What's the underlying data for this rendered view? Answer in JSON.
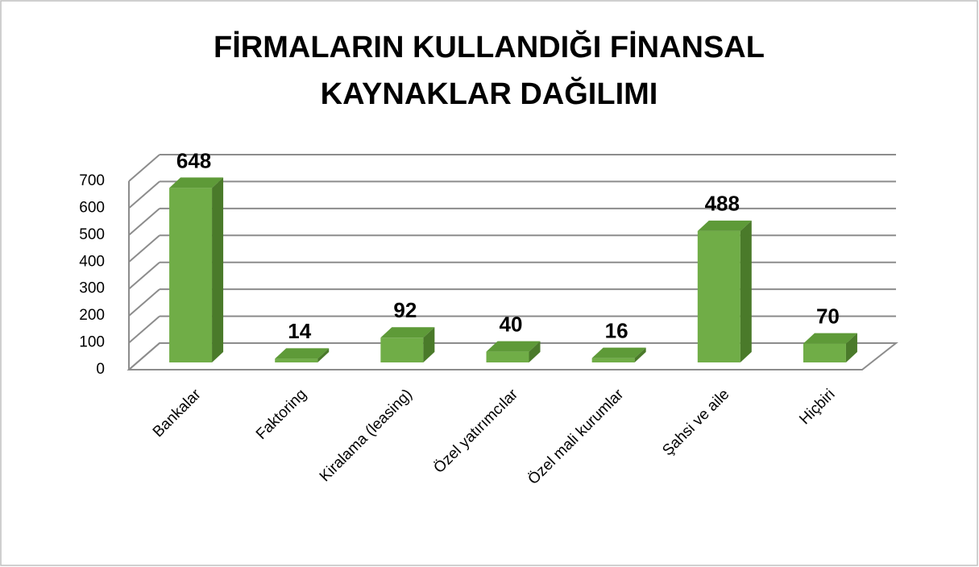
{
  "chart_data": {
    "type": "bar3d",
    "title": "FİRMALARIN KULLANDIĞI FİNANSAL KAYNAKLAR DAĞILIMI",
    "categories": [
      "Bankalar",
      "Faktoring",
      "Kiralama (leasing)",
      "Özel yatırımcılar",
      "Özel mali kurumlar",
      "Şahsi ve aile",
      "Hiçbiri"
    ],
    "values": [
      648,
      14,
      92,
      40,
      16,
      488,
      70
    ],
    "color": "#70ad47",
    "ylim": [
      0,
      700
    ],
    "yticks": [
      0,
      100,
      200,
      300,
      400,
      500,
      600,
      700
    ],
    "grid": true
  }
}
